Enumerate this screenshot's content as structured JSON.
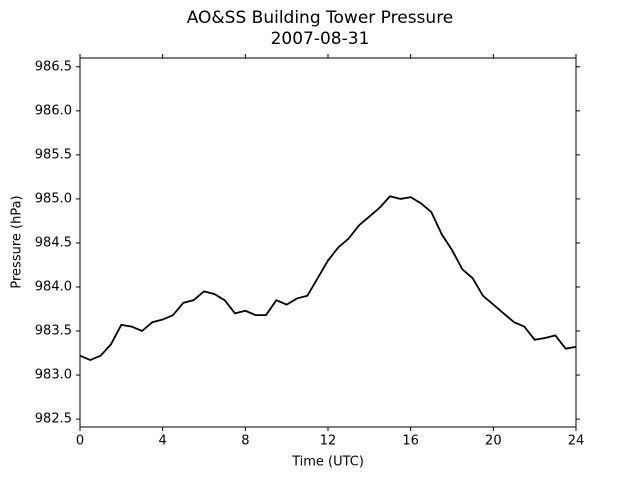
{
  "chart_data": {
    "type": "line",
    "title": "AO&SS Building Tower Pressure",
    "subtitle": "2007-08-31",
    "x_label": "Time (UTC)",
    "y_label": "Pressure (hPa)",
    "xlim": [
      0,
      24
    ],
    "xticks": [
      0,
      4,
      8,
      12,
      16,
      20,
      24
    ],
    "ylim": [
      982.41,
      986.6
    ],
    "yticks": [
      982.5,
      {
        "value": 983.0,
        "label": "983.0"
      },
      983.5,
      {
        "value": 984.0,
        "label": "984.0"
      },
      984.5,
      {
        "value": 985.0,
        "label": "985.0"
      },
      985.5,
      {
        "value": 986.0,
        "label": "986.0"
      },
      986.5
    ],
    "grid": false,
    "x": [
      0,
      0.5,
      1,
      1.5,
      2,
      2.5,
      3,
      3.5,
      4,
      4.5,
      5,
      5.5,
      6,
      6.5,
      7,
      7.5,
      8,
      8.5,
      9,
      9.5,
      10,
      10.5,
      11,
      11.5,
      12,
      12.5,
      13,
      13.5,
      14,
      14.5,
      15,
      15.5,
      16,
      16.5,
      17,
      17.5,
      18,
      18.5,
      19,
      19.5,
      20,
      20.5,
      21,
      21.5,
      22,
      22.5,
      23,
      23.5,
      24
    ],
    "series": [
      {
        "name": "Pressure",
        "color": "#000000",
        "values": [
          983.22,
          983.17,
          983.22,
          983.35,
          983.57,
          983.55,
          983.5,
          983.6,
          983.63,
          983.68,
          983.82,
          983.85,
          983.95,
          983.92,
          983.85,
          983.7,
          983.73,
          983.68,
          983.68,
          983.85,
          983.8,
          983.87,
          983.9,
          984.1,
          984.3,
          984.45,
          984.55,
          984.7,
          984.8,
          984.9,
          985.03,
          985.0,
          985.02,
          984.95,
          984.85,
          984.6,
          984.42,
          984.2,
          984.1,
          983.9,
          983.8,
          983.7,
          983.6,
          983.55,
          983.4,
          983.42,
          983.45,
          983.3,
          983.32
        ]
      }
    ]
  }
}
